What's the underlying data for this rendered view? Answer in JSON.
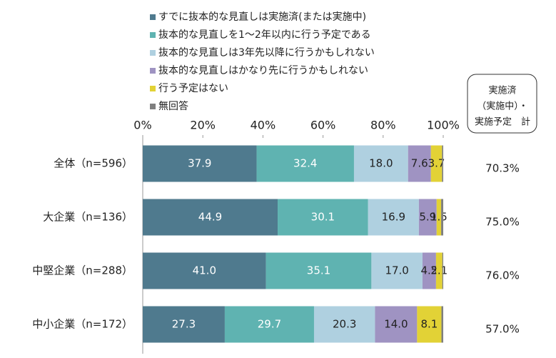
{
  "chart_data": {
    "type": "stacked-barh",
    "categories": [
      "全体（n=596）",
      "大企業（n=136）",
      "中堅企業（n=288）",
      "中小企業（n=172）"
    ],
    "series": [
      {
        "name": "すでに抜本的な見直しは実施済(または実施中)",
        "color": "#4f7a8e",
        "values": [
          37.9,
          44.9,
          41.0,
          27.3
        ],
        "value_labels": [
          "37.9",
          "44.9",
          "41.0",
          "27.3"
        ]
      },
      {
        "name": "抜本的な見直しを1～2年以内に行う予定である",
        "color": "#5fb3b1",
        "values": [
          32.4,
          30.1,
          35.1,
          29.7
        ],
        "value_labels": [
          "32.4",
          "30.1",
          "35.1",
          "29.7"
        ]
      },
      {
        "name": "抜本的な見直しは3年先以降に行うかもしれない",
        "color": "#afd0e0",
        "values": [
          18.0,
          16.9,
          17.0,
          20.3
        ],
        "value_labels": [
          "18.0",
          "16.9",
          "17.0",
          "20.3"
        ]
      },
      {
        "name": "抜本的な見直しはかなり先に行うかもしれない",
        "color": "#9f93c2",
        "values": [
          7.6,
          5.9,
          4.5,
          14.0
        ],
        "value_labels": [
          "7.6",
          "5.9",
          "4.5",
          "14.0"
        ]
      },
      {
        "name": "行う予定はない",
        "color": "#e2d236",
        "values": [
          3.7,
          1.5,
          2.1,
          8.1
        ],
        "value_labels": [
          "3.7",
          "1.5",
          "2.1",
          "8.1"
        ]
      },
      {
        "name": "無回答",
        "color": "#7f7f7f",
        "values": [
          0.4,
          0.7,
          0.3,
          0.6
        ]
      }
    ],
    "xlim": [
      0,
      100
    ],
    "xticks": [
      {
        "value": 0,
        "label": "0%"
      },
      {
        "value": 20,
        "label": "20%"
      },
      {
        "value": 40,
        "label": "40%"
      },
      {
        "value": 60,
        "label": "60%"
      },
      {
        "value": 80,
        "label": "80%"
      },
      {
        "value": 100,
        "label": "100%"
      }
    ],
    "totals": {
      "title": [
        "実施済",
        "（実施中）・",
        "実施予定　計"
      ],
      "values": [
        70.3,
        75.0,
        76.0,
        57.0
      ],
      "value_labels": [
        "70.3%",
        "75.0%",
        "76.0%",
        "57.0%"
      ]
    }
  }
}
